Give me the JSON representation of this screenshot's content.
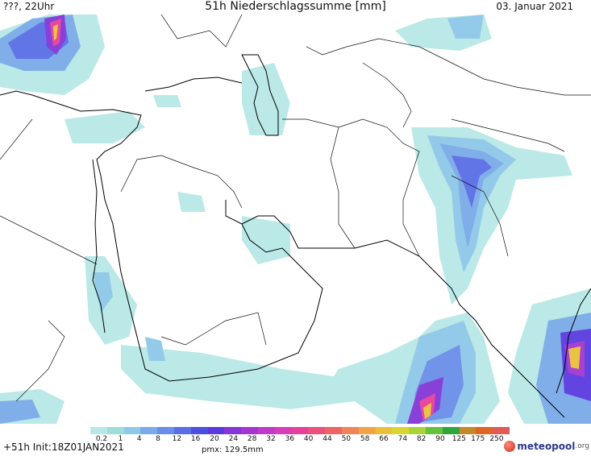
{
  "header": {
    "left": "???, 22Uhr",
    "title": "51h Niederschlagssumme [mm]",
    "date": "03. Januar 2021"
  },
  "footer": {
    "run_info": "+51h Init:18Z01JAN2021",
    "pmx": "pmx: 129.5mm"
  },
  "logo": {
    "main": "meteopool",
    "tld": ".org"
  },
  "legend": {
    "ticks": [
      "0.2",
      "1",
      "4",
      "8",
      "12",
      "16",
      "20",
      "24",
      "28",
      "32",
      "36",
      "40",
      "44",
      "50",
      "58",
      "66",
      "74",
      "82",
      "90",
      "125",
      "175",
      "250"
    ],
    "colors": [
      "#b7e8e6",
      "#9fdcdc",
      "#8fc8e8",
      "#7aaae8",
      "#6a8ee8",
      "#5a6ee6",
      "#4c4ee0",
      "#5a3ae0",
      "#8236d8",
      "#a436d0",
      "#c03ac8",
      "#d83cb8",
      "#e6409a",
      "#ea507c",
      "#ee6464",
      "#ee8458",
      "#f0a446",
      "#eac03a",
      "#d8d634",
      "#a8d438",
      "#66c23c",
      "#2ea63c",
      "#c48a2a",
      "#e06424",
      "#e05a5a"
    ]
  }
}
